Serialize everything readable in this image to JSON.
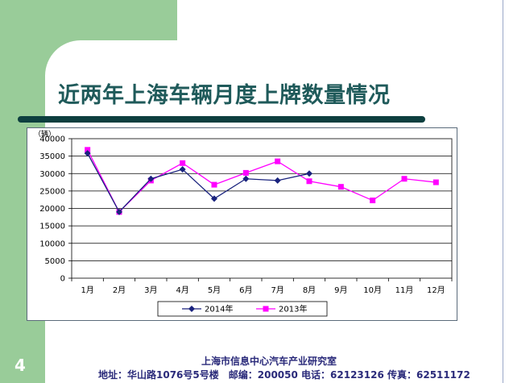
{
  "slide": {
    "title": "近两年上海车辆月度上牌数量情况",
    "page_number": "4",
    "footer_org": "上海市信息中心汽车产业研究室",
    "footer_address": "地址：华山路1076号5号楼　邮编：200050  电话：62123126  传真：62511172"
  },
  "colors": {
    "band": "#99cc99",
    "title": "#1f5a5a",
    "rule": "#0d3f3f",
    "series_2014": "#1a237e",
    "series_2013": "#ff00ff"
  },
  "chart_data": {
    "type": "line",
    "unit_label": "（辆）",
    "categories": [
      "1月",
      "2月",
      "3月",
      "4月",
      "5月",
      "6月",
      "7月",
      "8月",
      "9月",
      "10月",
      "11月",
      "12月"
    ],
    "ylim": [
      0,
      40000
    ],
    "yticks": [
      "0",
      "5000",
      "10000",
      "15000",
      "20000",
      "25000",
      "30000",
      "35000",
      "40000"
    ],
    "grid": true,
    "legend_position": "bottom",
    "series": [
      {
        "name": "2014年",
        "marker": "diamond",
        "color": "#1a237e",
        "values": [
          35800,
          19000,
          28500,
          31200,
          22800,
          28500,
          28000,
          30000,
          null,
          null,
          null,
          null
        ]
      },
      {
        "name": "2013年",
        "marker": "square",
        "color": "#ff00ff",
        "values": [
          36800,
          19000,
          28000,
          33000,
          26800,
          30200,
          33500,
          27800,
          26200,
          22300,
          28500,
          27500
        ]
      }
    ]
  }
}
